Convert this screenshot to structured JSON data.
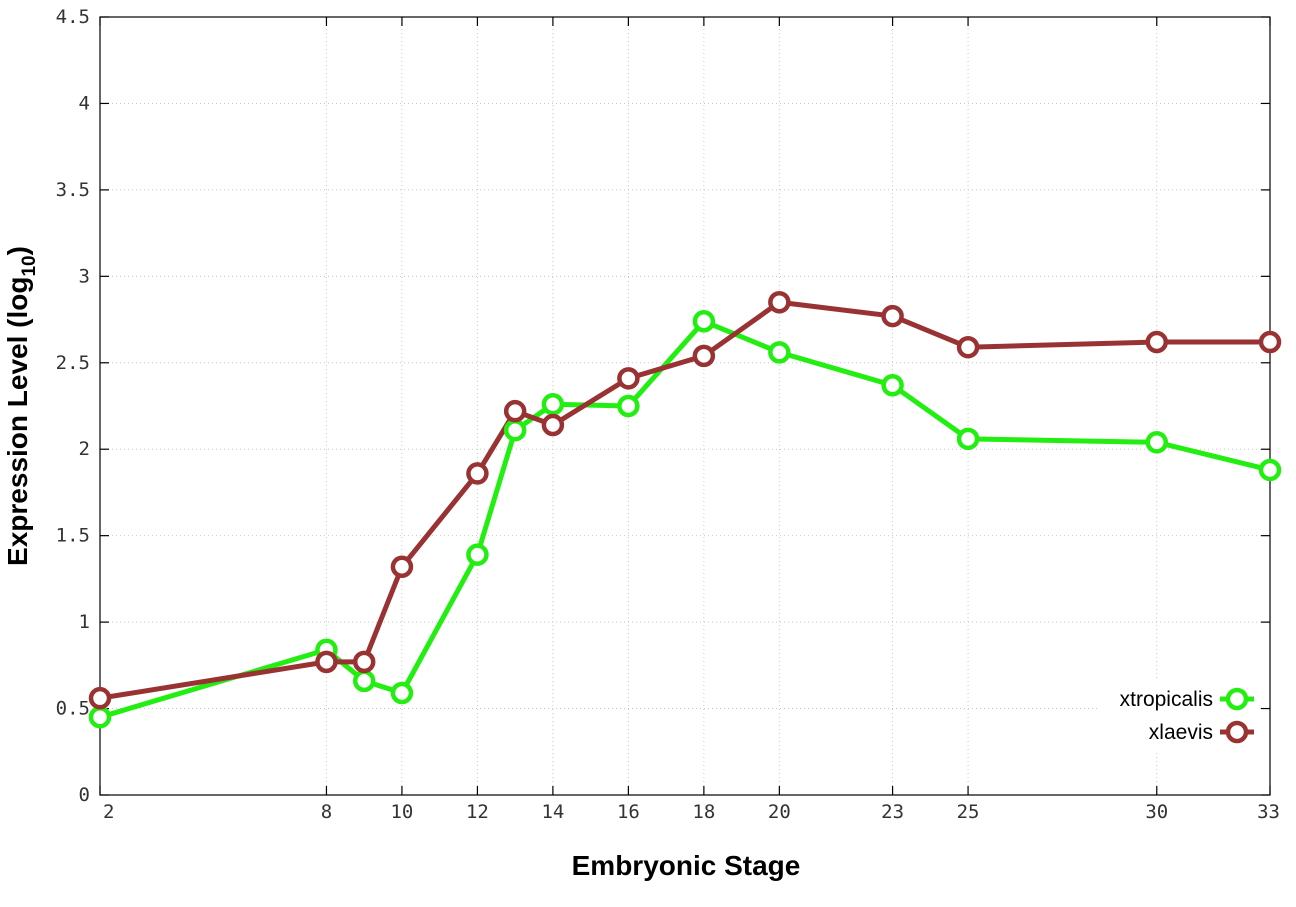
{
  "chart_data": {
    "type": "line",
    "xlabel": "Embryonic Stage",
    "ylabel": "Expression Level (log",
    "ylabel_subscript": "10",
    "ylabel_close": ")",
    "xlim": [
      2,
      33
    ],
    "ylim": [
      0,
      4.5
    ],
    "grid": true,
    "legend_position": "bottom-right",
    "x_ticks": [
      2,
      8,
      10,
      12,
      14,
      16,
      18,
      20,
      23,
      25,
      30,
      33
    ],
    "y_ticks": [
      {
        "value": 0,
        "label": "0"
      },
      {
        "value": 0.5,
        "label": "0.5"
      },
      {
        "value": 1,
        "label": "1"
      },
      {
        "value": 1.5,
        "label": "1.5"
      },
      {
        "value": 2,
        "label": "2"
      },
      {
        "value": 2.5,
        "label": "2.5"
      },
      {
        "value": 3,
        "label": "3"
      },
      {
        "value": 3.5,
        "label": "3.5"
      },
      {
        "value": 4,
        "label": "4"
      },
      {
        "value": 4.5,
        "label": "4.5"
      }
    ],
    "x": [
      2,
      8,
      9,
      10,
      12,
      13,
      14,
      16,
      18,
      20,
      23,
      25,
      30,
      33
    ],
    "series": [
      {
        "name": "xtropicalis",
        "color": "#22ee11",
        "values": [
          0.45,
          0.84,
          0.66,
          0.59,
          1.39,
          2.11,
          2.26,
          2.25,
          2.74,
          2.56,
          2.37,
          2.06,
          2.04,
          1.88
        ]
      },
      {
        "name": "xlaevis",
        "color": "#993333",
        "values": [
          0.56,
          0.77,
          0.77,
          1.32,
          1.86,
          2.22,
          2.14,
          2.41,
          2.54,
          2.85,
          2.77,
          2.59,
          2.62,
          2.62
        ]
      }
    ]
  }
}
